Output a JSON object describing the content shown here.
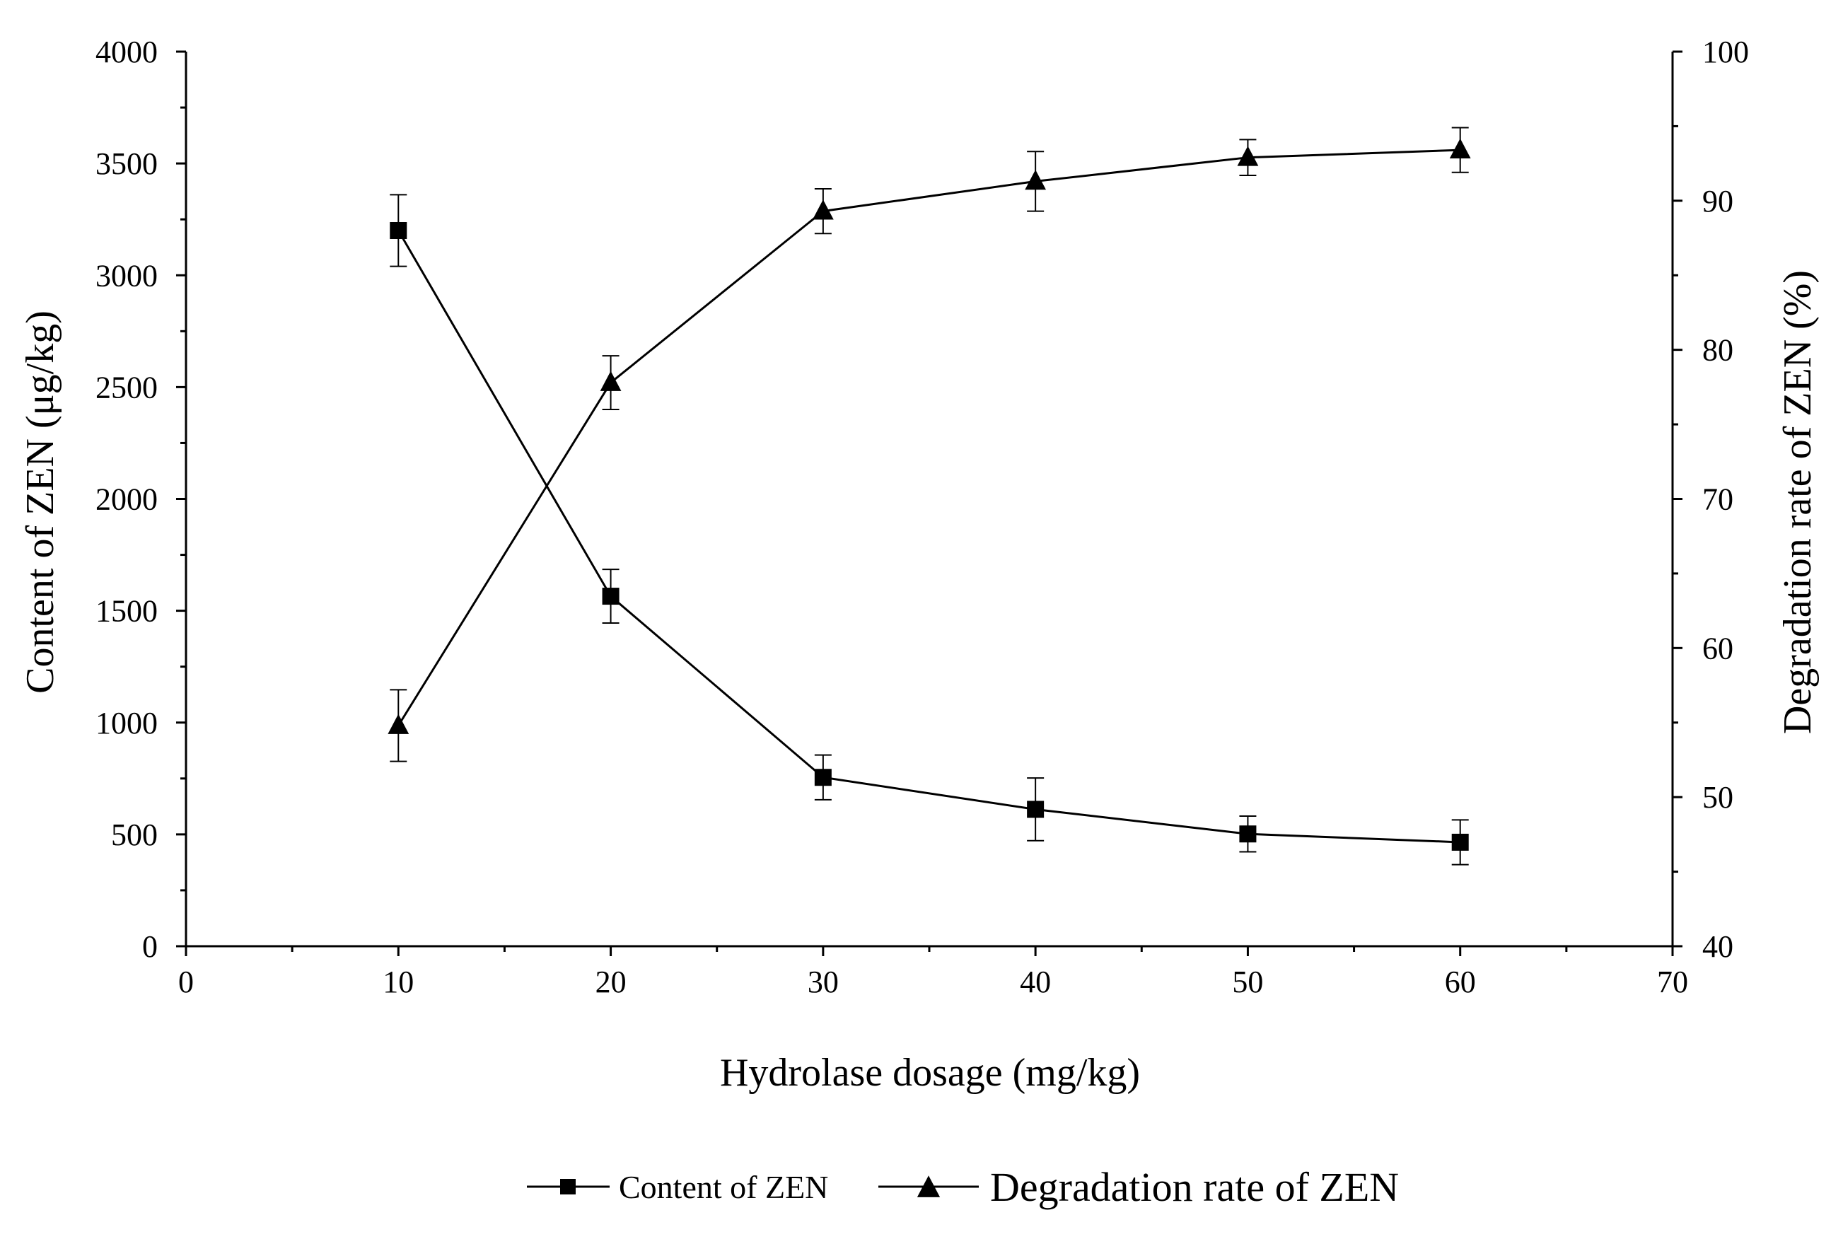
{
  "chart_data": {
    "type": "line",
    "title": "",
    "xlabel": "Hydrolase dosage (mg/kg)",
    "ylabel_left": "Content of ZEN (μg/kg)",
    "ylabel_right": "Degradation rate of ZEN (%)",
    "xlim": [
      0,
      70
    ],
    "ylim_left": [
      0,
      4000
    ],
    "ylim_right": [
      40,
      100
    ],
    "x_ticks": [
      0,
      10,
      20,
      30,
      40,
      50,
      60,
      70
    ],
    "y_left_ticks": [
      0,
      500,
      1000,
      1500,
      2000,
      2500,
      3000,
      3500,
      4000
    ],
    "y_right_ticks": [
      40,
      50,
      60,
      70,
      80,
      90,
      100
    ],
    "grid": false,
    "legend_position": "bottom-center",
    "series": [
      {
        "name": "Content of ZEN",
        "axis": "left",
        "marker": "square",
        "x": [
          10,
          20,
          30,
          40,
          50,
          60
        ],
        "values": [
          3200,
          1565,
          755,
          612,
          502,
          465
        ],
        "errors": [
          160,
          120,
          100,
          140,
          80,
          100
        ]
      },
      {
        "name": "Degradation rate of ZEN",
        "axis": "right",
        "marker": "triangle",
        "x": [
          10,
          20,
          30,
          40,
          50,
          60
        ],
        "values": [
          54.8,
          77.8,
          89.3,
          91.3,
          92.9,
          93.4
        ],
        "errors": [
          2.4,
          1.8,
          1.5,
          2.0,
          1.2,
          1.5
        ]
      }
    ]
  }
}
